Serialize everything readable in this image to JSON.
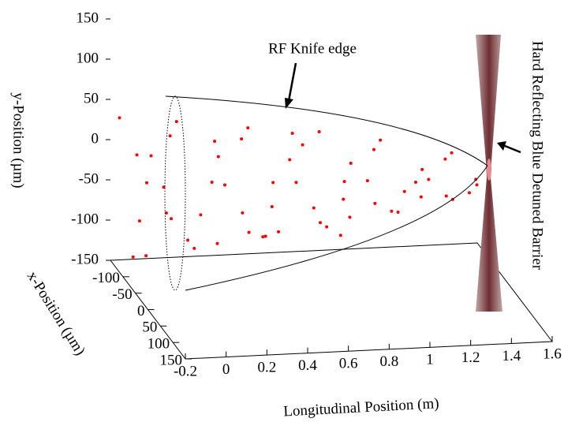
{
  "chart_data": {
    "type": "scatter3d",
    "color": "#ff0000",
    "xlabel": "x-Position (µm)",
    "ylabel": "y-Position (µm)",
    "zlabel": "Longitudinal Position (m)",
    "annotations": [
      "RF Knife edge",
      "Hard Reflecting Blue Detuned Barrier"
    ],
    "zlim": [
      -0.2,
      1.6
    ],
    "xlim": [
      -150,
      150
    ],
    "ylim": [
      -150,
      150
    ],
    "zticks": [
      -0.2,
      0,
      0.2,
      0.4,
      0.6,
      0.8,
      1,
      1.2,
      1.4,
      1.6
    ],
    "xticks": [
      -100,
      -50,
      0,
      50,
      100,
      150
    ],
    "yticks": [
      150,
      100,
      50,
      0,
      -50,
      -100,
      -150
    ],
    "z": [
      -0.18,
      -0.15,
      -0.12,
      -0.1,
      -0.08,
      -0.05,
      0,
      0,
      0.05,
      0.1,
      0.1,
      0.15,
      0.2,
      0.2,
      0.25,
      0.3,
      0.3,
      0.35,
      0.4,
      0.4,
      0.45,
      0.5,
      0.5,
      0.55,
      0.6,
      0.6,
      0.65,
      0.7,
      0.7,
      0.75,
      0.8,
      0.8,
      0.85,
      0.9,
      0.9,
      0.95,
      1.0,
      1.0,
      1.05,
      1.1,
      1.1,
      1.15,
      1.2,
      1.2,
      1.25,
      1.3,
      1.3,
      1.35,
      1.4,
      1.4,
      1.45,
      1.5,
      1.5,
      1.55,
      -0.15,
      0.05,
      0.25,
      0.45,
      0.65,
      0.85
    ],
    "x": [
      -130,
      -100,
      -70,
      -115,
      -85,
      -130,
      -100,
      -70,
      -115,
      -85,
      -130,
      -100,
      -70,
      -115,
      -85,
      -130,
      -100,
      -70,
      -115,
      -85,
      -130,
      -100,
      -70,
      -115,
      -85,
      -130,
      -100,
      -70,
      -115,
      -85,
      -130,
      -100,
      -70,
      -115,
      -85,
      -130,
      -100,
      -70,
      -115,
      -85,
      -130,
      -100,
      -70,
      -115,
      -85,
      -130,
      -100,
      -70,
      -115,
      -85,
      -130,
      -100,
      -70,
      -115,
      -85,
      -130,
      -100,
      -70,
      -115,
      -85
    ],
    "y": [
      35,
      -126,
      -22,
      -88,
      5,
      -138,
      -41,
      -68,
      16,
      -102,
      27,
      -119,
      -25,
      -84,
      0,
      -127,
      -42,
      -65,
      8,
      -96,
      15,
      -108,
      -29,
      -78,
      -8,
      -116,
      -43,
      -63,
      -3,
      -88,
      6,
      -100,
      -32,
      -73,
      -16,
      -102,
      -45,
      -61,
      -13,
      -78,
      -8,
      -86,
      -37,
      -67,
      -28,
      -81,
      -47,
      -56,
      -29,
      -67,
      -28,
      -66,
      -44,
      -56,
      7,
      -86,
      13,
      -96,
      12,
      -105
    ]
  }
}
